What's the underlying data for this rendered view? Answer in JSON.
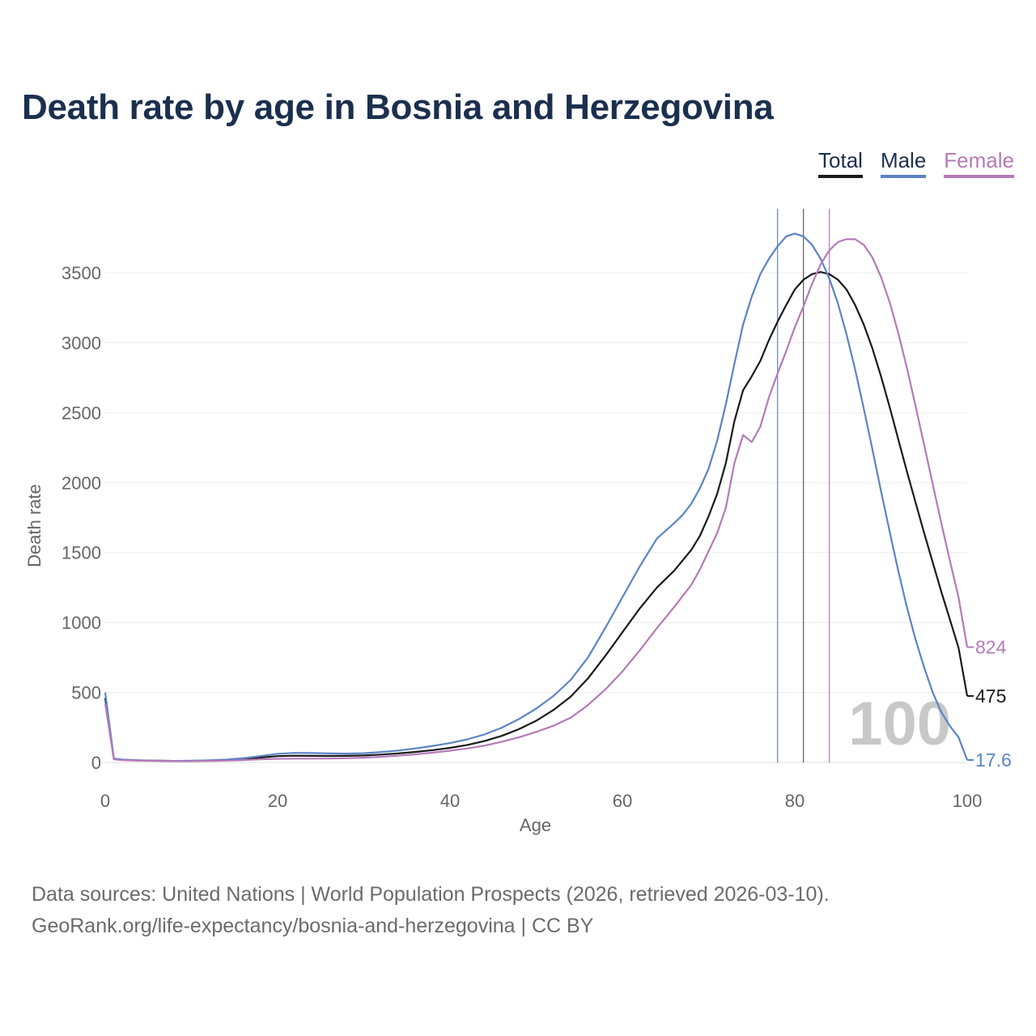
{
  "title": "Death rate by age in Bosnia and Herzegovina",
  "legend": [
    {
      "label": "Total",
      "color": "#1a1a1a"
    },
    {
      "label": "Male",
      "color": "#5b84c4"
    },
    {
      "label": "Female",
      "color": "#b57ab8"
    }
  ],
  "footer": {
    "line1": "Data sources: United Nations | World Population Prospects (2026, retrieved 2026-03-10).",
    "line2": "GeoRank.org/life-expectancy/bosnia-and-herzegovina | CC BY"
  },
  "chart_data": {
    "type": "line",
    "title": "Death rate by age in Bosnia and Herzegovina",
    "xlabel": "Age",
    "ylabel": "Death rate",
    "xlim": [
      0,
      100
    ],
    "ylim": [
      0,
      3900
    ],
    "xticks": [
      0,
      20,
      40,
      60,
      80,
      100
    ],
    "yticks": [
      0,
      500,
      1000,
      1500,
      2000,
      2500,
      3000,
      3500
    ],
    "grid": true,
    "highlight_age": "100",
    "vertical_markers": [
      {
        "series": "Male",
        "age": 78
      },
      {
        "series": "Total",
        "age": 81
      },
      {
        "series": "Female",
        "age": 84
      }
    ],
    "end_labels": {
      "Total": "475",
      "Male": "17.6",
      "Female": "824"
    },
    "series": [
      {
        "name": "Total",
        "color": "#1a1a1a",
        "points": [
          [
            0,
            460
          ],
          [
            1,
            25
          ],
          [
            2,
            18
          ],
          [
            4,
            14
          ],
          [
            6,
            12
          ],
          [
            8,
            11
          ],
          [
            10,
            11
          ],
          [
            12,
            13
          ],
          [
            14,
            17
          ],
          [
            16,
            24
          ],
          [
            18,
            35
          ],
          [
            20,
            45
          ],
          [
            22,
            48
          ],
          [
            24,
            47
          ],
          [
            26,
            46
          ],
          [
            28,
            47
          ],
          [
            30,
            50
          ],
          [
            32,
            56
          ],
          [
            34,
            64
          ],
          [
            36,
            75
          ],
          [
            38,
            88
          ],
          [
            40,
            104
          ],
          [
            42,
            125
          ],
          [
            44,
            153
          ],
          [
            46,
            190
          ],
          [
            48,
            238
          ],
          [
            50,
            298
          ],
          [
            52,
            375
          ],
          [
            54,
            470
          ],
          [
            56,
            600
          ],
          [
            58,
            760
          ],
          [
            60,
            930
          ],
          [
            62,
            1100
          ],
          [
            64,
            1250
          ],
          [
            66,
            1370
          ],
          [
            68,
            1520
          ],
          [
            69,
            1620
          ],
          [
            70,
            1760
          ],
          [
            71,
            1920
          ],
          [
            72,
            2140
          ],
          [
            73,
            2440
          ],
          [
            74,
            2660
          ],
          [
            75,
            2760
          ],
          [
            76,
            2870
          ],
          [
            77,
            3020
          ],
          [
            78,
            3150
          ],
          [
            79,
            3270
          ],
          [
            80,
            3380
          ],
          [
            81,
            3450
          ],
          [
            82,
            3490
          ],
          [
            83,
            3505
          ],
          [
            84,
            3490
          ],
          [
            85,
            3450
          ],
          [
            86,
            3380
          ],
          [
            87,
            3270
          ],
          [
            88,
            3130
          ],
          [
            89,
            2960
          ],
          [
            90,
            2760
          ],
          [
            91,
            2540
          ],
          [
            92,
            2310
          ],
          [
            93,
            2080
          ],
          [
            94,
            1860
          ],
          [
            95,
            1640
          ],
          [
            96,
            1430
          ],
          [
            97,
            1220
          ],
          [
            98,
            1020
          ],
          [
            99,
            820
          ],
          [
            100,
            475
          ]
        ]
      },
      {
        "name": "Male",
        "color": "#5b84c4",
        "points": [
          [
            0,
            500
          ],
          [
            1,
            28
          ],
          [
            2,
            20
          ],
          [
            4,
            15
          ],
          [
            6,
            12
          ],
          [
            8,
            11
          ],
          [
            10,
            12
          ],
          [
            12,
            15
          ],
          [
            14,
            20
          ],
          [
            16,
            30
          ],
          [
            18,
            45
          ],
          [
            20,
            62
          ],
          [
            22,
            68
          ],
          [
            24,
            67
          ],
          [
            26,
            64
          ],
          [
            28,
            63
          ],
          [
            30,
            66
          ],
          [
            32,
            74
          ],
          [
            34,
            85
          ],
          [
            36,
            100
          ],
          [
            38,
            118
          ],
          [
            40,
            138
          ],
          [
            42,
            165
          ],
          [
            44,
            200
          ],
          [
            46,
            248
          ],
          [
            48,
            310
          ],
          [
            50,
            385
          ],
          [
            52,
            475
          ],
          [
            54,
            590
          ],
          [
            56,
            750
          ],
          [
            58,
            960
          ],
          [
            60,
            1180
          ],
          [
            62,
            1400
          ],
          [
            64,
            1600
          ],
          [
            66,
            1710
          ],
          [
            67,
            1770
          ],
          [
            68,
            1850
          ],
          [
            69,
            1960
          ],
          [
            70,
            2100
          ],
          [
            71,
            2300
          ],
          [
            72,
            2560
          ],
          [
            73,
            2850
          ],
          [
            74,
            3130
          ],
          [
            75,
            3330
          ],
          [
            76,
            3490
          ],
          [
            77,
            3600
          ],
          [
            78,
            3690
          ],
          [
            79,
            3760
          ],
          [
            80,
            3780
          ],
          [
            81,
            3760
          ],
          [
            82,
            3700
          ],
          [
            83,
            3600
          ],
          [
            84,
            3460
          ],
          [
            85,
            3280
          ],
          [
            86,
            3060
          ],
          [
            87,
            2810
          ],
          [
            88,
            2530
          ],
          [
            89,
            2240
          ],
          [
            90,
            1940
          ],
          [
            91,
            1650
          ],
          [
            92,
            1370
          ],
          [
            93,
            1110
          ],
          [
            94,
            880
          ],
          [
            95,
            680
          ],
          [
            96,
            500
          ],
          [
            97,
            360
          ],
          [
            98,
            260
          ],
          [
            99,
            180
          ],
          [
            100,
            17.6
          ]
        ]
      },
      {
        "name": "Female",
        "color": "#b57ab8",
        "points": [
          [
            0,
            420
          ],
          [
            1,
            22
          ],
          [
            2,
            16
          ],
          [
            4,
            13
          ],
          [
            6,
            11
          ],
          [
            8,
            10
          ],
          [
            10,
            10
          ],
          [
            12,
            11
          ],
          [
            14,
            13
          ],
          [
            16,
            17
          ],
          [
            18,
            22
          ],
          [
            20,
            26
          ],
          [
            22,
            27
          ],
          [
            24,
            27
          ],
          [
            26,
            28
          ],
          [
            28,
            30
          ],
          [
            30,
            34
          ],
          [
            32,
            40
          ],
          [
            34,
            48
          ],
          [
            36,
            58
          ],
          [
            38,
            70
          ],
          [
            40,
            84
          ],
          [
            42,
            100
          ],
          [
            44,
            120
          ],
          [
            46,
            148
          ],
          [
            48,
            180
          ],
          [
            50,
            218
          ],
          [
            52,
            262
          ],
          [
            54,
            320
          ],
          [
            56,
            410
          ],
          [
            58,
            520
          ],
          [
            60,
            650
          ],
          [
            62,
            800
          ],
          [
            64,
            960
          ],
          [
            66,
            1110
          ],
          [
            68,
            1270
          ],
          [
            69,
            1380
          ],
          [
            70,
            1510
          ],
          [
            71,
            1640
          ],
          [
            72,
            1820
          ],
          [
            73,
            2140
          ],
          [
            74,
            2340
          ],
          [
            75,
            2290
          ],
          [
            76,
            2400
          ],
          [
            77,
            2610
          ],
          [
            78,
            2780
          ],
          [
            79,
            2940
          ],
          [
            80,
            3110
          ],
          [
            81,
            3260
          ],
          [
            82,
            3420
          ],
          [
            83,
            3560
          ],
          [
            84,
            3660
          ],
          [
            85,
            3720
          ],
          [
            86,
            3740
          ],
          [
            87,
            3740
          ],
          [
            88,
            3700
          ],
          [
            89,
            3610
          ],
          [
            90,
            3470
          ],
          [
            91,
            3290
          ],
          [
            92,
            3070
          ],
          [
            93,
            2820
          ],
          [
            94,
            2550
          ],
          [
            95,
            2270
          ],
          [
            96,
            1990
          ],
          [
            97,
            1710
          ],
          [
            98,
            1440
          ],
          [
            99,
            1180
          ],
          [
            100,
            824
          ]
        ]
      }
    ]
  }
}
